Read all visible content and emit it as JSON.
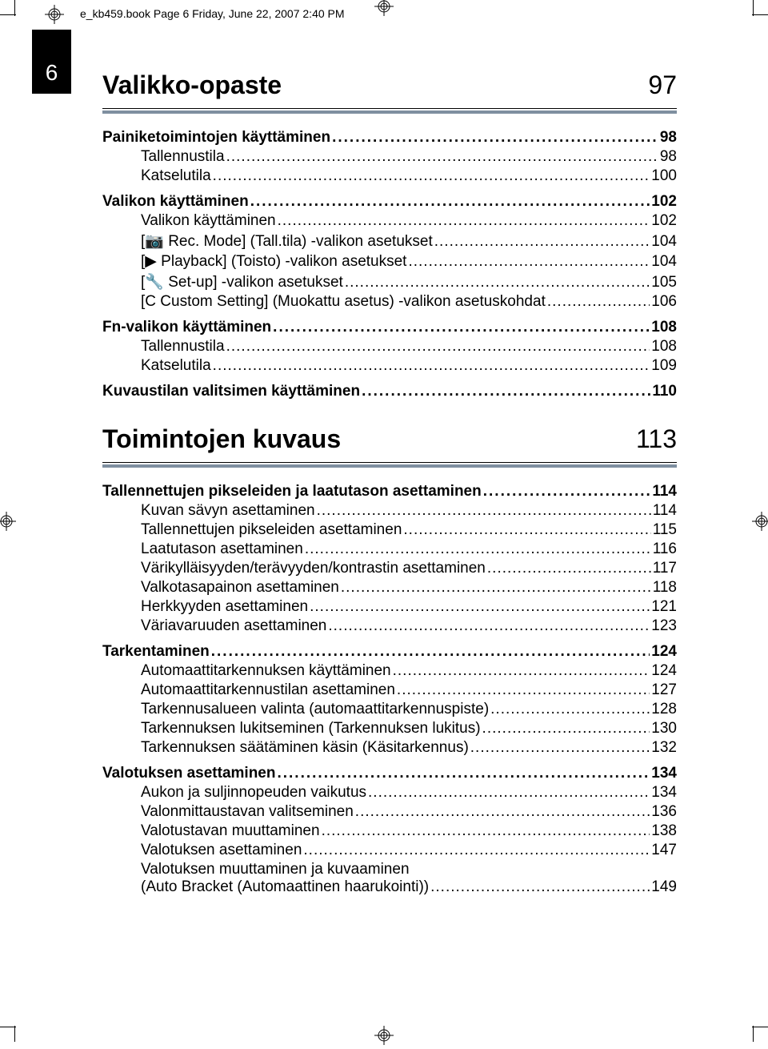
{
  "header": "e_kb459.book  Page 6  Friday, June 22, 2007  2:40 PM",
  "page_tab": "6",
  "colors": {
    "rule_accent": "#7f8fa0",
    "tab_bg": "#000000",
    "tab_fg": "#ffffff",
    "text": "#000000",
    "bg": "#ffffff"
  },
  "chapters": [
    {
      "title": "Valikko-opaste",
      "page": "97",
      "sections": [
        {
          "label": "Painiketoimintojen käyttäminen",
          "page": "98",
          "subs": [
            {
              "label": "Tallennustila",
              "page": "98"
            },
            {
              "label": "Katselutila",
              "page": "100"
            }
          ]
        },
        {
          "label": "Valikon käyttäminen",
          "page": "102",
          "subs": [
            {
              "label": "Valikon käyttäminen",
              "page": "102"
            },
            {
              "label": "[📷 Rec. Mode] (Tall.tila) -valikon asetukset",
              "page": "104"
            },
            {
              "label": "[▶ Playback] (Toisto) -valikon asetukset",
              "page": "104"
            },
            {
              "label": "[🔧 Set-up] -valikon asetukset",
              "page": "105"
            },
            {
              "label": "[C Custom Setting] (Muokattu asetus) -valikon asetuskohdat",
              "page": "106"
            }
          ]
        },
        {
          "label": "Fn-valikon käyttäminen",
          "page": "108",
          "subs": [
            {
              "label": "Tallennustila",
              "page": "108"
            },
            {
              "label": "Katselutila",
              "page": "109"
            }
          ]
        },
        {
          "label": "Kuvaustilan valitsimen käyttäminen",
          "page": "110",
          "subs": []
        }
      ]
    },
    {
      "title": "Toimintojen kuvaus",
      "page": "113",
      "sections": [
        {
          "label": "Tallennettujen pikseleiden ja laatutason asettaminen",
          "page": "114",
          "subs": [
            {
              "label": "Kuvan sävyn asettaminen",
              "page": "114"
            },
            {
              "label": "Tallennettujen pikseleiden asettaminen",
              "page": "115"
            },
            {
              "label": "Laatutason asettaminen",
              "page": "116"
            },
            {
              "label": "Värikylläisyyden/terävyyden/kontrastin asettaminen",
              "page": "117"
            },
            {
              "label": "Valkotasapainon asettaminen",
              "page": "118"
            },
            {
              "label": "Herkkyyden asettaminen",
              "page": "121"
            },
            {
              "label": "Väriavaruuden asettaminen",
              "page": "123"
            }
          ]
        },
        {
          "label": "Tarkentaminen",
          "page": "124",
          "subs": [
            {
              "label": "Automaattitarkennuksen käyttäminen",
              "page": "124"
            },
            {
              "label": "Automaattitarkennustilan asettaminen",
              "page": "127"
            },
            {
              "label": "Tarkennusalueen valinta (automaattitarkennuspiste)",
              "page": "128"
            },
            {
              "label": "Tarkennuksen lukitseminen (Tarkennuksen lukitus)",
              "page": "130"
            },
            {
              "label": "Tarkennuksen säätäminen käsin (Käsitarkennus)",
              "page": "132"
            }
          ]
        },
        {
          "label": "Valotuksen asettaminen",
          "page": "134",
          "subs": [
            {
              "label": "Aukon ja suljinnopeuden vaikutus",
              "page": "134"
            },
            {
              "label": "Valonmittaustavan valitseminen",
              "page": "136"
            },
            {
              "label": "Valotustavan muuttaminen",
              "page": "138"
            },
            {
              "label": "Valotuksen asettaminen",
              "page": "147"
            },
            {
              "label_line1": "Valotuksen muuttaminen ja kuvaaminen",
              "label_line2": "(Auto Bracket (Automaattinen haarukointi))",
              "page": "149",
              "multiline": true
            }
          ]
        }
      ]
    }
  ]
}
